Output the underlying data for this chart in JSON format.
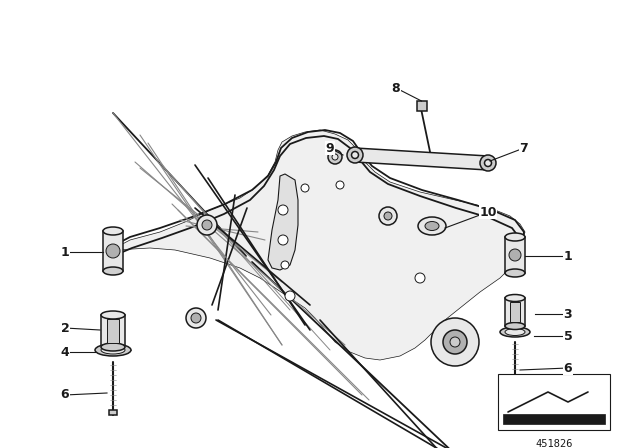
{
  "background_color": "#ffffff",
  "figure_width": 6.4,
  "figure_height": 4.48,
  "dpi": 100,
  "watermark": "451826",
  "color_main": "#1a1a1a",
  "color_light": "#888888",
  "color_fill": "#e8e8e8",
  "color_mid": "#cccccc"
}
